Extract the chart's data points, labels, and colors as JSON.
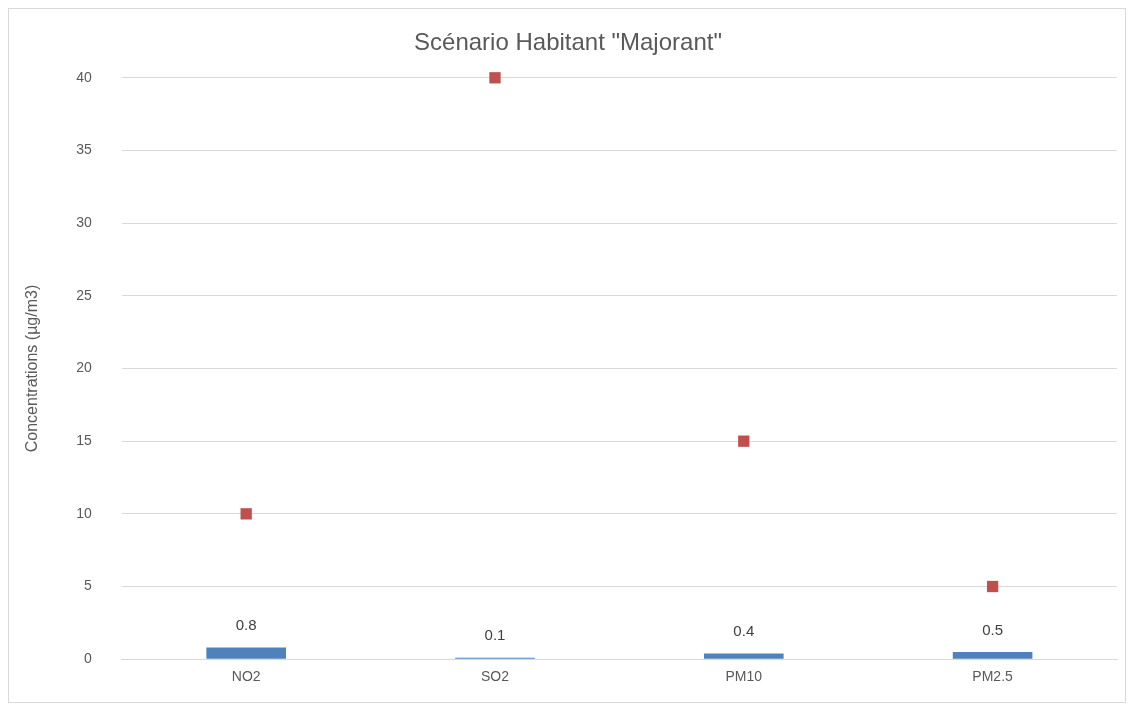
{
  "chart_data": {
    "type": "bar",
    "title": "Scénario Habitant \"Majorant\"",
    "ylabel": "Concentrations (µg/m3)",
    "categories": [
      "NO2",
      "SO2",
      "PM10",
      "PM2.5"
    ],
    "series": [
      {
        "color": "#4f81bd",
        "values": [
          0.8,
          0.1,
          0.4,
          0.5
        ],
        "value_labels": [
          "0.8",
          "0.1",
          "0.4",
          "0.5"
        ]
      },
      {
        "type": "scatter",
        "color": "#c0504d",
        "marker": "square",
        "values": [
          10,
          40,
          15,
          5
        ]
      }
    ],
    "ylim": [
      0,
      40
    ],
    "yticks": [
      0,
      5,
      10,
      15,
      20,
      25,
      30,
      35,
      40
    ],
    "grid": "y",
    "legend": false
  }
}
